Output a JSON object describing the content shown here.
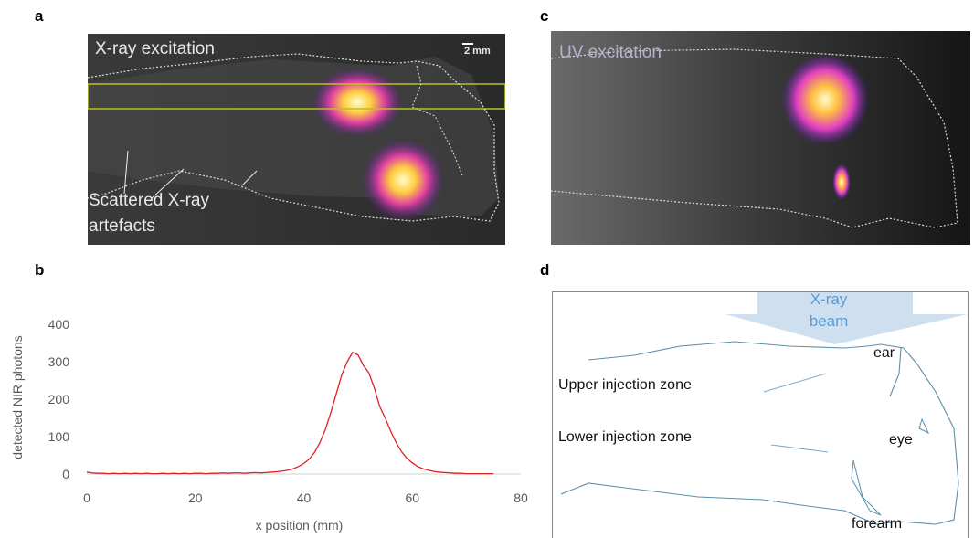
{
  "panels": {
    "a": {
      "label": "a",
      "title": "X-ray excitation",
      "scale_bar": "2 mm",
      "annotation": "Scattered X-ray artefacts"
    },
    "b": {
      "label": "b"
    },
    "c": {
      "label": "c",
      "title": "UV excitation"
    },
    "d": {
      "label": "d",
      "beam": "X-ray beam",
      "ear": "ear",
      "upper": "Upper injection zone",
      "lower": "Lower injection zone",
      "eye": "eye",
      "forearm": "forearm"
    }
  },
  "chart_data": {
    "type": "line",
    "x_label": "x position (mm)",
    "y_label": "detected NIR photons",
    "x": [
      0,
      1,
      2,
      3,
      4,
      5,
      6,
      7,
      8,
      9,
      10,
      11,
      12,
      13,
      14,
      15,
      16,
      17,
      18,
      19,
      20,
      21,
      22,
      23,
      24,
      25,
      26,
      27,
      28,
      29,
      30,
      31,
      32,
      33,
      34,
      35,
      36,
      37,
      38,
      39,
      40,
      41,
      42,
      43,
      44,
      45,
      46,
      47,
      48,
      49,
      50,
      51,
      52,
      53,
      54,
      55,
      56,
      57,
      58,
      59,
      60,
      61,
      62,
      63,
      64,
      65,
      66,
      67,
      68,
      69,
      70,
      71,
      72,
      73,
      74,
      75
    ],
    "values": [
      5,
      3,
      2,
      2,
      1,
      2,
      1,
      2,
      1,
      2,
      1,
      2,
      1,
      1,
      2,
      1,
      2,
      1,
      2,
      1,
      2,
      2,
      1,
      2,
      2,
      3,
      2,
      3,
      3,
      2,
      3,
      4,
      3,
      4,
      5,
      6,
      8,
      10,
      14,
      20,
      28,
      40,
      58,
      85,
      120,
      165,
      215,
      265,
      300,
      325,
      318,
      290,
      270,
      230,
      180,
      150,
      115,
      85,
      60,
      42,
      30,
      20,
      14,
      10,
      7,
      5,
      4,
      3,
      2,
      2,
      1,
      1,
      1,
      1,
      1,
      1
    ],
    "color": "#e02020",
    "xlim": [
      0,
      80
    ],
    "xticks": [
      0,
      20,
      40,
      60,
      80
    ],
    "ylim": [
      0,
      400
    ],
    "yticks": [
      0,
      100,
      200,
      300,
      400
    ],
    "grid": false
  }
}
